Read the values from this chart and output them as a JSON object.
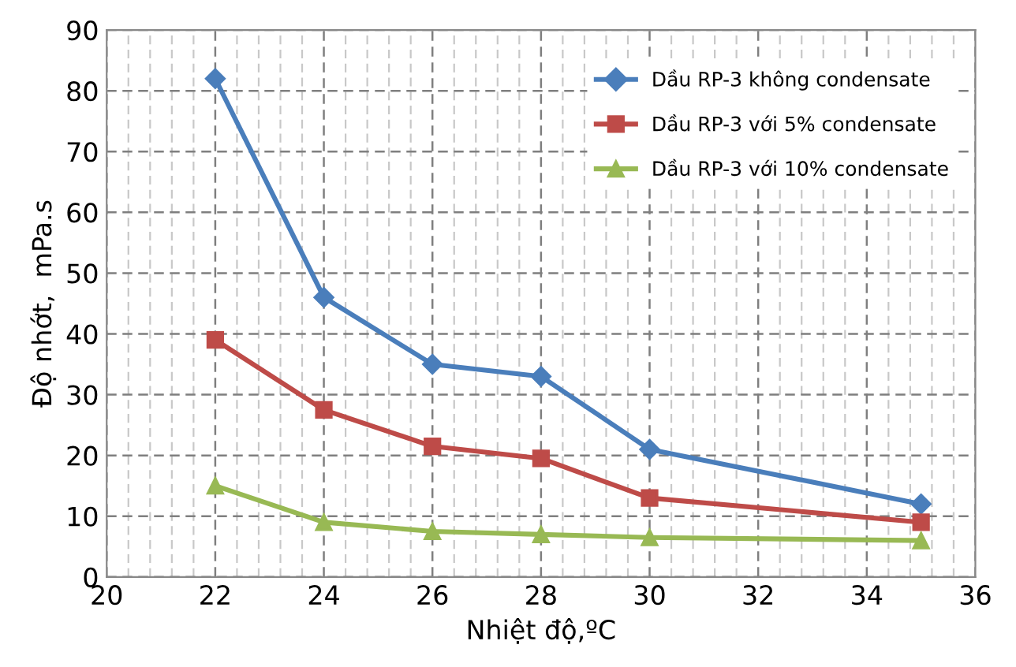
{
  "chart_data": {
    "type": "line",
    "xlabel": "Nhiệt độ,ºC",
    "ylabel": "Độ nhớt,  mPa.s",
    "x": [
      22,
      24,
      26,
      28,
      30,
      35
    ],
    "series": [
      {
        "name": "Dầu RP-3 không condensate",
        "color": "#4a7ebb",
        "marker": "diamond",
        "values": [
          82,
          46,
          35,
          33,
          21,
          12
        ]
      },
      {
        "name": "Dầu RP-3 với 5% condensate",
        "color": "#be4b48",
        "marker": "square",
        "values": [
          39,
          27.5,
          21.5,
          19.5,
          13,
          9
        ]
      },
      {
        "name": "Dầu RP-3 với 10% condensate",
        "color": "#98b954",
        "marker": "triangle",
        "values": [
          15,
          9,
          7.5,
          7,
          6.5,
          6
        ]
      }
    ],
    "xlim": [
      20,
      36
    ],
    "xticks": [
      20,
      22,
      24,
      26,
      28,
      30,
      32,
      34,
      36
    ],
    "ylim": [
      0,
      90
    ],
    "yticks": [
      0,
      10,
      20,
      30,
      40,
      50,
      60,
      70,
      80,
      90
    ],
    "grid": true,
    "legend": "top right",
    "line_style": "solid"
  }
}
